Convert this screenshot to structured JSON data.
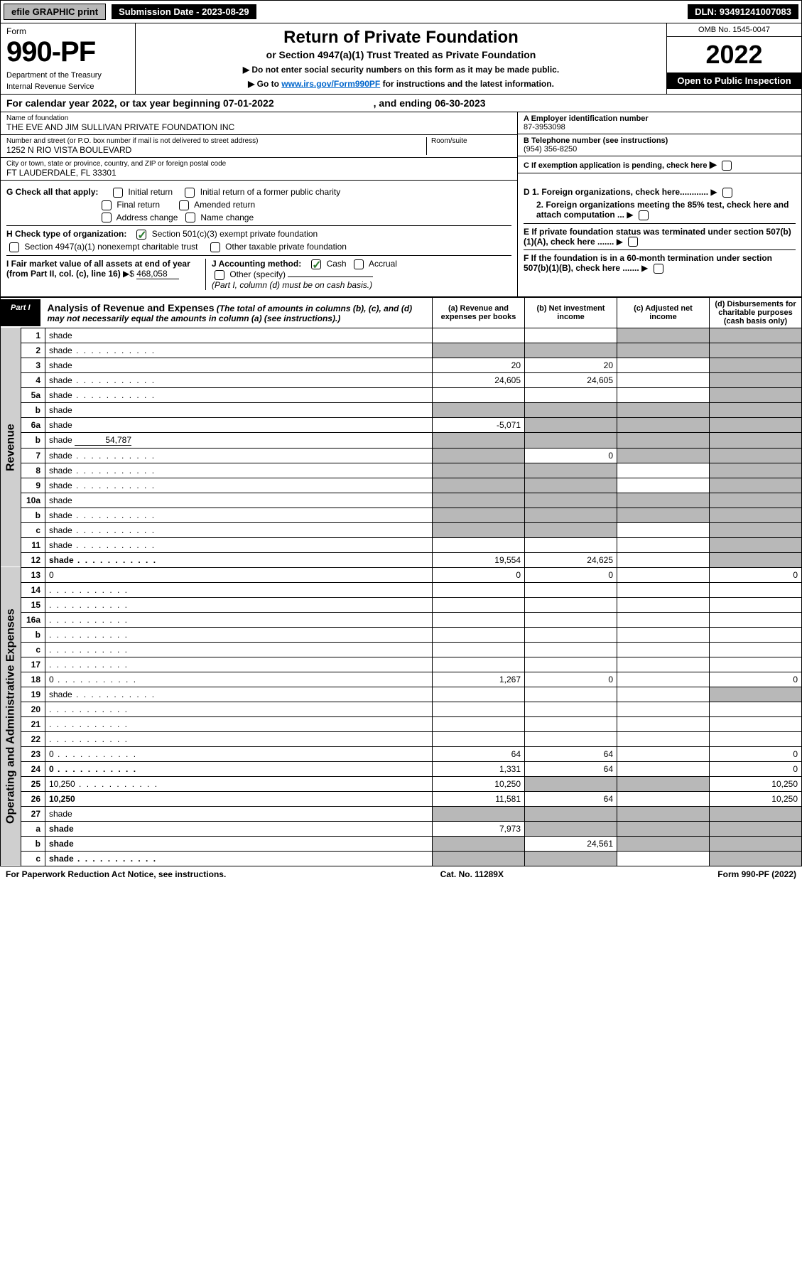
{
  "topbar": {
    "efile": "efile GRAPHIC print",
    "subdate_label": "Submission Date - 2023-08-29",
    "dln": "DLN: 93491241007083"
  },
  "header": {
    "form_word": "Form",
    "form_num": "990-PF",
    "dept": "Department of the Treasury",
    "irs": "Internal Revenue Service",
    "title": "Return of Private Foundation",
    "subtitle": "or Section 4947(a)(1) Trust Treated as Private Foundation",
    "note1": "▶ Do not enter social security numbers on this form as it may be made public.",
    "note2_pre": "▶ Go to ",
    "note2_link": "www.irs.gov/Form990PF",
    "note2_post": " for instructions and the latest information.",
    "omb": "OMB No. 1545-0047",
    "year": "2022",
    "open": "Open to Public Inspection"
  },
  "calyear": {
    "text": "For calendar year 2022, or tax year beginning 07-01-2022",
    "end": ", and ending 06-30-2023"
  },
  "entity": {
    "name_lbl": "Name of foundation",
    "name": "THE EVE AND JIM SULLIVAN PRIVATE FOUNDATION INC",
    "addr_lbl": "Number and street (or P.O. box number if mail is not delivered to street address)",
    "addr": "1252 N RIO VISTA BOULEVARD",
    "room_lbl": "Room/suite",
    "city_lbl": "City or town, state or province, country, and ZIP or foreign postal code",
    "city": "FT LAUDERDALE, FL  33301",
    "ein_lbl": "A Employer identification number",
    "ein": "87-3953098",
    "tel_lbl": "B Telephone number (see instructions)",
    "tel": "(954) 356-8250",
    "c_lbl": "C If exemption application is pending, check here"
  },
  "checks": {
    "g_lbl": "G Check all that apply:",
    "g_items": [
      "Initial return",
      "Initial return of a former public charity",
      "Final return",
      "Amended return",
      "Address change",
      "Name change"
    ],
    "h_lbl": "H Check type of organization:",
    "h1": "Section 501(c)(3) exempt private foundation",
    "h2": "Section 4947(a)(1) nonexempt charitable trust",
    "h3": "Other taxable private foundation",
    "i_lbl": "I Fair market value of all assets at end of year (from Part II, col. (c), line 16)",
    "i_val": "468,058",
    "j_lbl": "J Accounting method:",
    "j1": "Cash",
    "j2": "Accrual",
    "j3": "Other (specify)",
    "j_note": "(Part I, column (d) must be on cash basis.)",
    "d1": "D 1. Foreign organizations, check here............",
    "d2": "2. Foreign organizations meeting the 85% test, check here and attach computation ...",
    "e": "E  If private foundation status was terminated under section 507(b)(1)(A), check here .......",
    "f": "F  If the foundation is in a 60-month termination under section 507(b)(1)(B), check here ......."
  },
  "part1": {
    "tag": "Part I",
    "title": "Analysis of Revenue and Expenses",
    "note": "(The total of amounts in columns (b), (c), and (d) may not necessarily equal the amounts in column (a) (see instructions).)",
    "cols": {
      "a": "(a)  Revenue and expenses per books",
      "b": "(b)  Net investment income",
      "c": "(c)  Adjusted net income",
      "d": "(d)  Disbursements for charitable purposes (cash basis only)"
    }
  },
  "side_labels": {
    "rev": "Revenue",
    "exp": "Operating and Administrative Expenses"
  },
  "rows": [
    {
      "n": "1",
      "d": "shade",
      "a": "",
      "b": "",
      "c": "shade"
    },
    {
      "n": "2",
      "d": "shade",
      "a": "shade",
      "b": "shade",
      "c": "shade",
      "dots": true
    },
    {
      "n": "3",
      "d": "shade",
      "a": "20",
      "b": "20",
      "c": ""
    },
    {
      "n": "4",
      "d": "shade",
      "a": "24,605",
      "b": "24,605",
      "c": "",
      "dots": true
    },
    {
      "n": "5a",
      "d": "shade",
      "a": "",
      "b": "",
      "c": "",
      "dots": true
    },
    {
      "n": "b",
      "d": "shade",
      "a": "shade",
      "b": "shade",
      "c": "shade",
      "inline": true
    },
    {
      "n": "6a",
      "d": "shade",
      "a": "-5,071",
      "b": "shade",
      "c": "shade"
    },
    {
      "n": "b",
      "d": "shade",
      "a": "shade",
      "b": "shade",
      "c": "shade",
      "inline_val": "54,787"
    },
    {
      "n": "7",
      "d": "shade",
      "a": "shade",
      "b": "0",
      "c": "shade",
      "dots": true
    },
    {
      "n": "8",
      "d": "shade",
      "a": "shade",
      "b": "shade",
      "c": "",
      "dots": true
    },
    {
      "n": "9",
      "d": "shade",
      "a": "shade",
      "b": "shade",
      "c": "",
      "dots": true
    },
    {
      "n": "10a",
      "d": "shade",
      "a": "shade",
      "b": "shade",
      "c": "shade",
      "inline": true
    },
    {
      "n": "b",
      "d": "shade",
      "a": "shade",
      "b": "shade",
      "c": "shade",
      "inline": true,
      "dots": true
    },
    {
      "n": "c",
      "d": "shade",
      "a": "shade",
      "b": "shade",
      "c": "",
      "dots": true
    },
    {
      "n": "11",
      "d": "shade",
      "a": "",
      "b": "",
      "c": "",
      "dots": true
    },
    {
      "n": "12",
      "d": "shade",
      "a": "19,554",
      "b": "24,625",
      "c": "",
      "bold": true,
      "dots": true
    }
  ],
  "exp_rows": [
    {
      "n": "13",
      "d": "0",
      "a": "0",
      "b": "0",
      "c": ""
    },
    {
      "n": "14",
      "d": "",
      "a": "",
      "b": "",
      "c": "",
      "dots": true
    },
    {
      "n": "15",
      "d": "",
      "a": "",
      "b": "",
      "c": "",
      "dots": true
    },
    {
      "n": "16a",
      "d": "",
      "a": "",
      "b": "",
      "c": "",
      "dots": true
    },
    {
      "n": "b",
      "d": "",
      "a": "",
      "b": "",
      "c": "",
      "dots": true
    },
    {
      "n": "c",
      "d": "",
      "a": "",
      "b": "",
      "c": "",
      "dots": true
    },
    {
      "n": "17",
      "d": "",
      "a": "",
      "b": "",
      "c": "",
      "dots": true
    },
    {
      "n": "18",
      "d": "0",
      "a": "1,267",
      "b": "0",
      "c": "",
      "dots": true
    },
    {
      "n": "19",
      "d": "shade",
      "a": "",
      "b": "",
      "c": "",
      "dots": true
    },
    {
      "n": "20",
      "d": "",
      "a": "",
      "b": "",
      "c": "",
      "dots": true
    },
    {
      "n": "21",
      "d": "",
      "a": "",
      "b": "",
      "c": "",
      "dots": true
    },
    {
      "n": "22",
      "d": "",
      "a": "",
      "b": "",
      "c": "",
      "dots": true
    },
    {
      "n": "23",
      "d": "0",
      "a": "64",
      "b": "64",
      "c": "",
      "dots": true
    },
    {
      "n": "24",
      "d": "0",
      "a": "1,331",
      "b": "64",
      "c": "",
      "bold": true,
      "dots": true
    },
    {
      "n": "25",
      "d": "10,250",
      "a": "10,250",
      "b": "shade",
      "c": "shade",
      "dots": true
    },
    {
      "n": "26",
      "d": "10,250",
      "a": "11,581",
      "b": "64",
      "c": "",
      "bold": true
    },
    {
      "n": "27",
      "d": "shade",
      "a": "shade",
      "b": "shade",
      "c": "shade"
    },
    {
      "n": "a",
      "d": "shade",
      "a": "7,973",
      "b": "shade",
      "c": "shade",
      "bold": true
    },
    {
      "n": "b",
      "d": "shade",
      "a": "shade",
      "b": "24,561",
      "c": "shade",
      "bold": true
    },
    {
      "n": "c",
      "d": "shade",
      "a": "shade",
      "b": "shade",
      "c": "",
      "bold": true,
      "dots": true
    }
  ],
  "footer": {
    "left": "For Paperwork Reduction Act Notice, see instructions.",
    "mid": "Cat. No. 11289X",
    "right": "Form 990-PF (2022)"
  }
}
